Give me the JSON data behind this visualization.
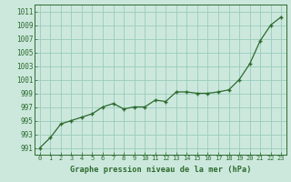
{
  "x": [
    0,
    1,
    2,
    3,
    4,
    5,
    6,
    7,
    8,
    9,
    10,
    11,
    12,
    13,
    14,
    15,
    16,
    17,
    18,
    19,
    20,
    21,
    22,
    23
  ],
  "y": [
    991.0,
    992.5,
    994.5,
    995.0,
    995.5,
    996.0,
    997.0,
    997.5,
    996.7,
    997.0,
    997.0,
    998.0,
    997.8,
    999.2,
    999.2,
    999.0,
    999.0,
    999.2,
    999.5,
    1001.0,
    1003.3,
    1006.7,
    1009.0,
    1010.2
  ],
  "line_color": "#2d6a2d",
  "marker_color": "#2d6a2d",
  "bg_color": "#cce8dd",
  "grid_color": "#99ccbb",
  "xlabel": "Graphe pression niveau de la mer (hPa)",
  "xlabel_color": "#2d6a2d",
  "ylabel_ticks": [
    991,
    993,
    995,
    997,
    999,
    1001,
    1003,
    1005,
    1007,
    1009,
    1011
  ],
  "xlim": [
    -0.5,
    23.5
  ],
  "ylim": [
    990,
    1012
  ],
  "xticks": [
    0,
    1,
    2,
    3,
    4,
    5,
    6,
    7,
    8,
    9,
    10,
    11,
    12,
    13,
    14,
    15,
    16,
    17,
    18,
    19,
    20,
    21,
    22,
    23
  ]
}
